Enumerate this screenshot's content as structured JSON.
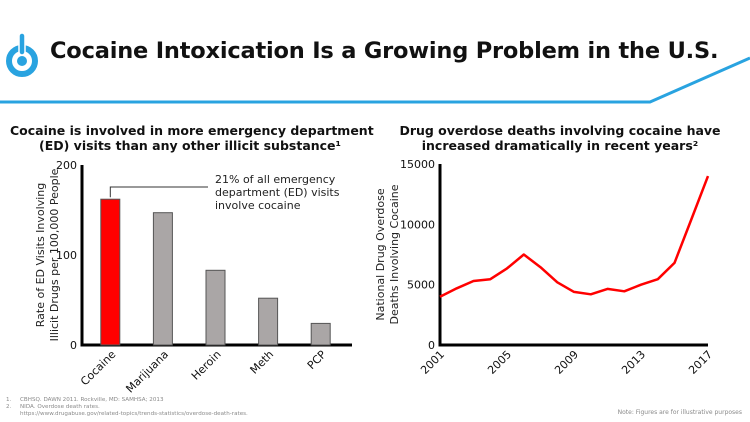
{
  "header": {
    "title": "Cocaine Intoxication Is a Growing Problem in the U.S.",
    "logo_icon": "power-button-icon",
    "accent_color": "#29a3e0"
  },
  "chart_data": [
    {
      "type": "bar",
      "title": "Cocaine is involved in more emergency department (ED) visits than any other illicit substance¹",
      "title_lines": [
        "Cocaine is involved in more emergency department",
        "(ED) visits than any other illicit substance¹"
      ],
      "categories": [
        "Cocaine",
        "Marijuana",
        "Heroin",
        "Meth",
        "PCP"
      ],
      "values": [
        162,
        147,
        83,
        52,
        24
      ],
      "highlight_category": "Cocaine",
      "colors": {
        "highlight": "#ff0000",
        "default": "#aaa6a6",
        "outline": "#555555"
      },
      "xlabel": "",
      "ylabel_lines": [
        "Rate of ED Visits Involving",
        "Illicit Drugs per 100,000 People"
      ],
      "ylabel": "Rate of ED Visits Involving Illicit Drugs per 100,000 People",
      "ylim": [
        0,
        200
      ],
      "yticks": [
        0,
        100,
        200
      ],
      "grid": false,
      "annotation": {
        "target": "Cocaine",
        "lines": [
          "21% of all emergency",
          "department (ED) visits",
          "involve cocaine"
        ]
      }
    },
    {
      "type": "line",
      "title": "Drug overdose deaths involving cocaine have increased dramatically in recent years²",
      "title_lines": [
        "Drug overdose deaths involving cocaine have",
        "increased dramatically in recent years²"
      ],
      "x": [
        2001,
        2002,
        2003,
        2004,
        2005,
        2006,
        2007,
        2008,
        2009,
        2010,
        2011,
        2012,
        2013,
        2014,
        2015,
        2016,
        2017
      ],
      "series": [
        {
          "name": "Cocaine overdose deaths",
          "color": "#ff0000",
          "values": [
            4000,
            4700,
            5300,
            5450,
            6350,
            7500,
            6450,
            5200,
            4400,
            4200,
            4650,
            4450,
            5000,
            5450,
            6800,
            10400,
            14000
          ]
        }
      ],
      "xlabel": "",
      "ylabel_lines": [
        "National Drug Overdose",
        "Deaths Involving Cocaine"
      ],
      "ylabel": "National Drug Overdose Deaths Involving Cocaine",
      "xlim": [
        2001,
        2017
      ],
      "xticks": [
        2001,
        2005,
        2009,
        2013,
        2017
      ],
      "ylim": [
        0,
        15000
      ],
      "yticks": [
        0,
        5000,
        10000,
        15000
      ],
      "grid": false
    }
  ],
  "footnotes": [
    {
      "num": "1.",
      "text": "CBHSQ. DAWN 2011. Rockville, MD: SAMHSA; 2013"
    },
    {
      "num": "2.",
      "text": "NIDA. Overdose death rates.",
      "cont": "https://www.drugabuse.gov/related-topics/trends-statistics/overdose-death-rates."
    }
  ],
  "note": "Note: Figures are for illustrative purposes"
}
